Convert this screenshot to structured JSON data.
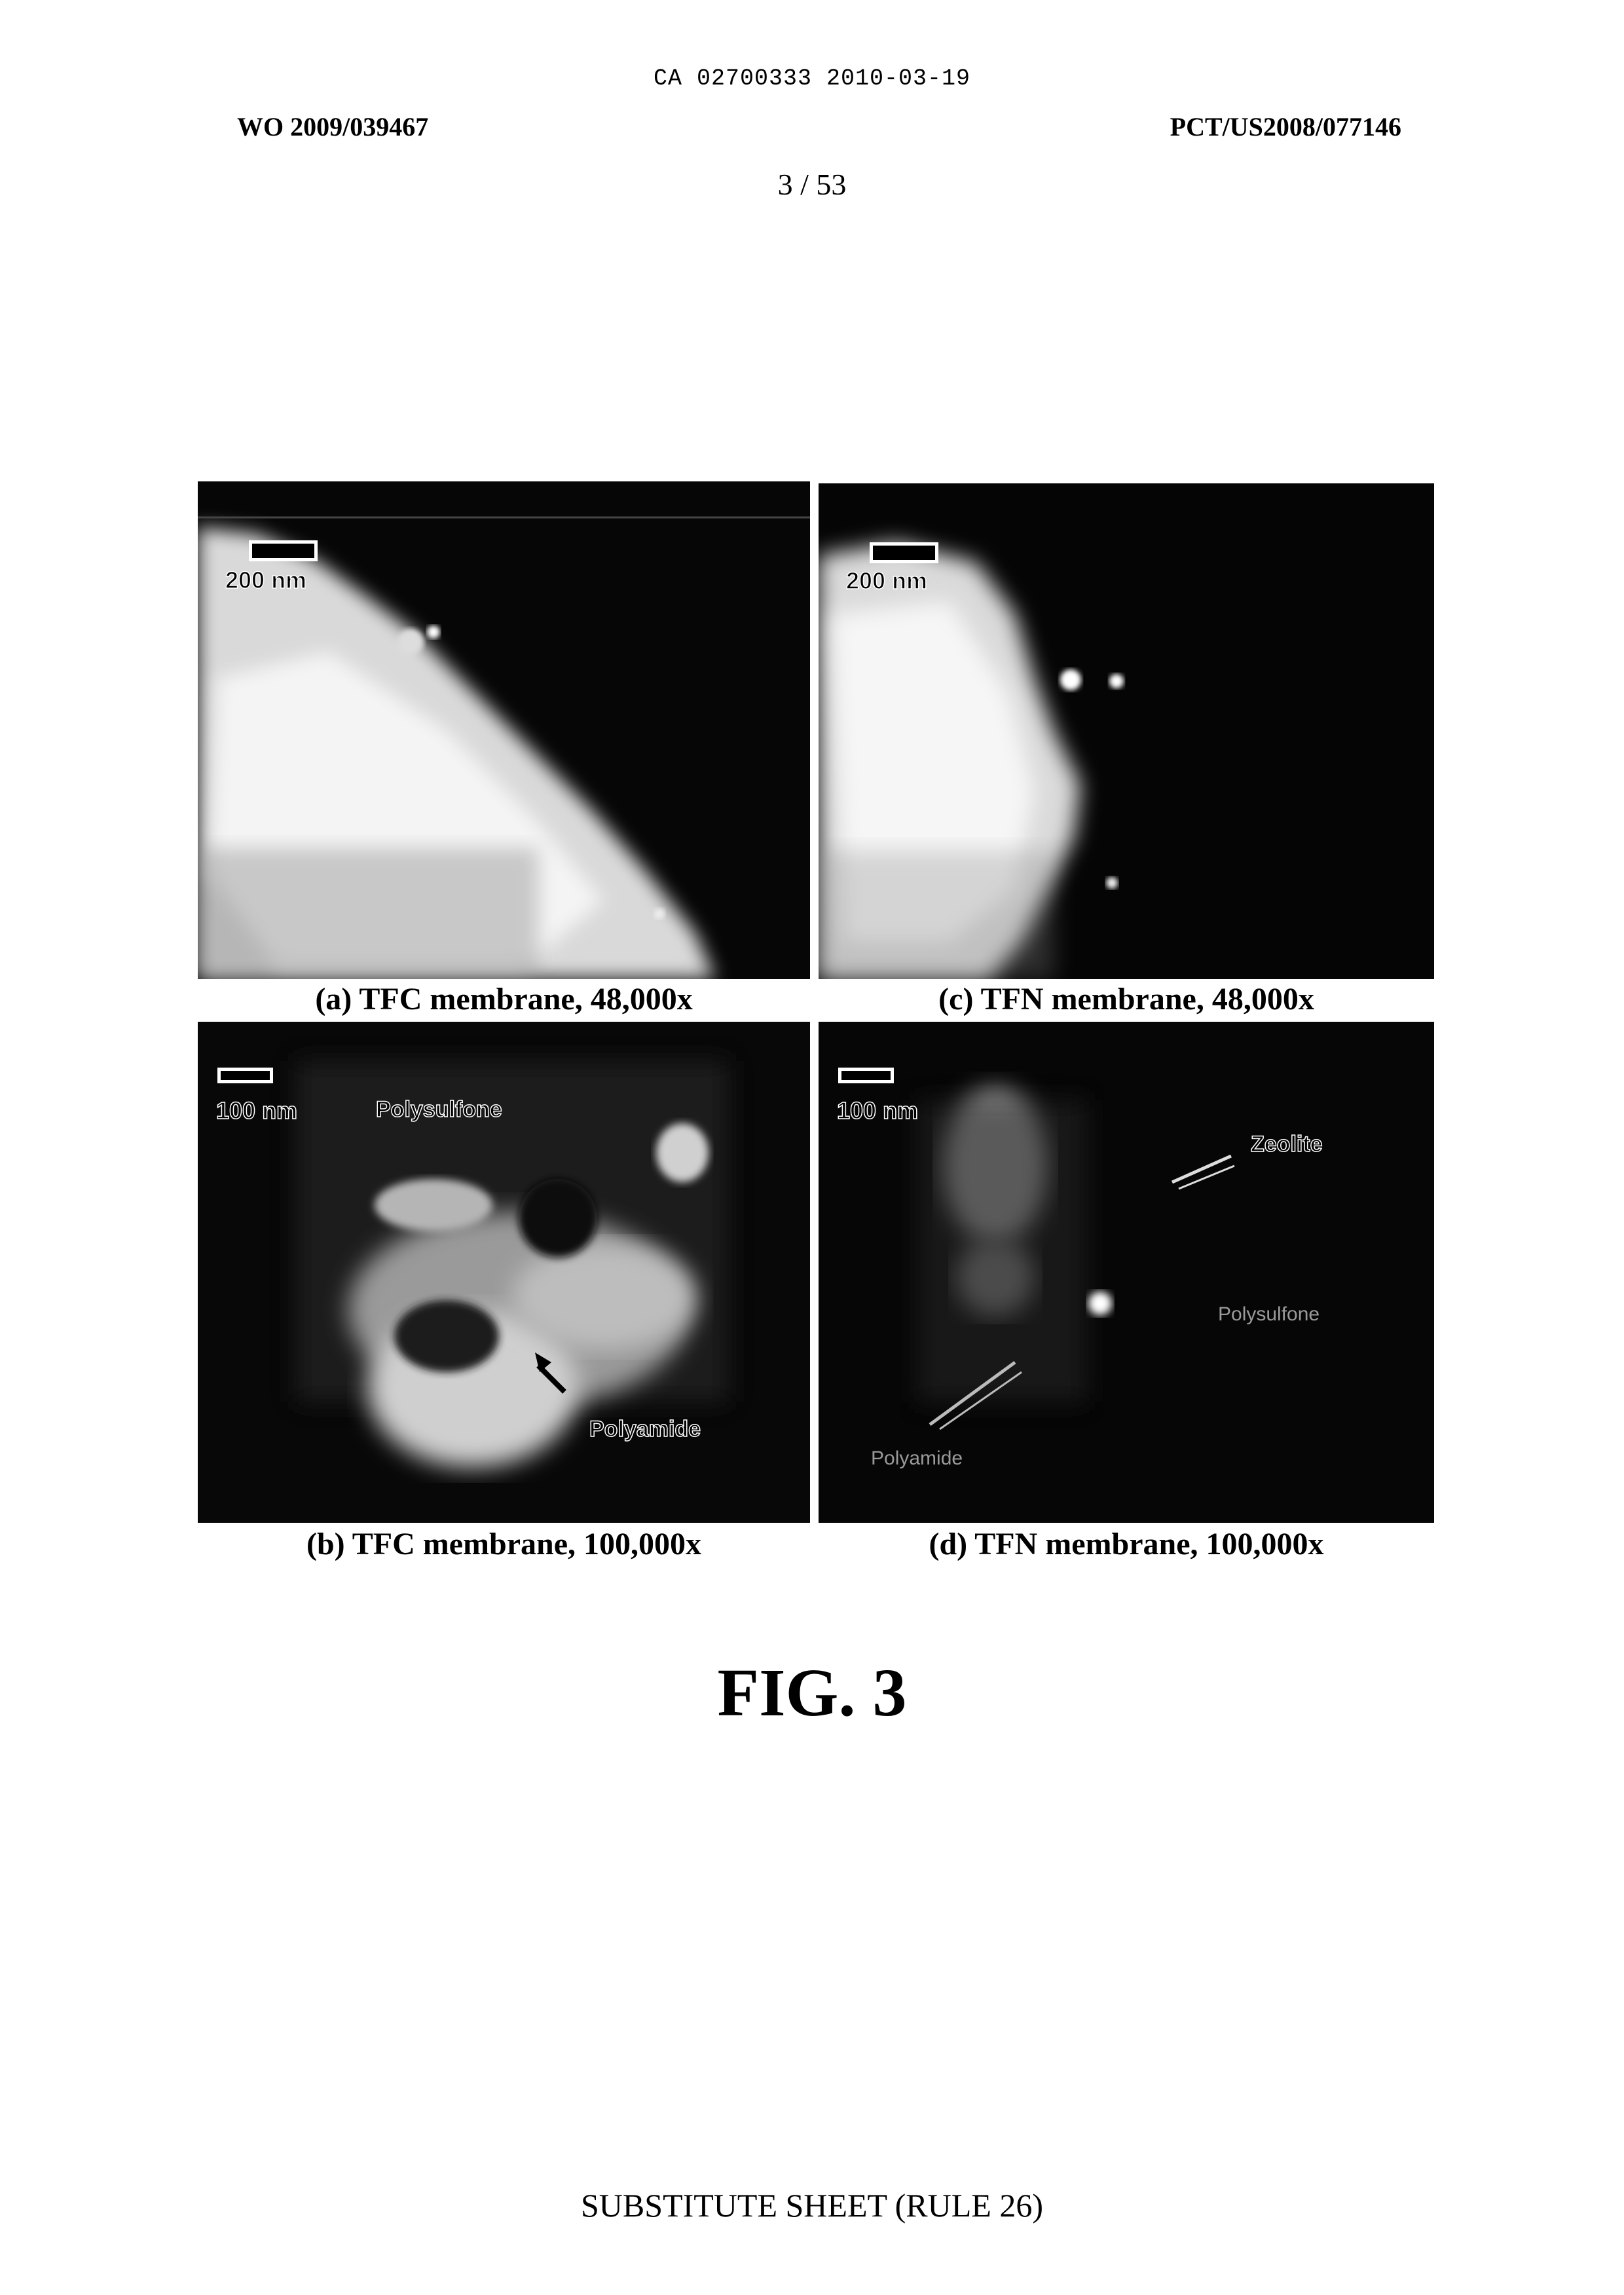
{
  "header": {
    "ca_line": "CA 02700333 2010-03-19",
    "wo_number": "WO 2009/039467",
    "pct_number": "PCT/US2008/077146",
    "sheet_number": "3 / 53"
  },
  "panels": {
    "a": {
      "caption": "(a) TFC membrane, 48,000x",
      "scale": "200 nm"
    },
    "c": {
      "caption": "(c) TFN membrane, 48,000x",
      "scale": "200 nm"
    },
    "b": {
      "caption": "(b) TFC membrane, 100,000x",
      "scale": "100 nm",
      "labels": {
        "polysulfone": "Polysulfone",
        "polyamide": "Polyamide"
      }
    },
    "d": {
      "caption": "(d) TFN membrane, 100,000x",
      "scale": "100 nm",
      "labels": {
        "zeolite": "Zeolite",
        "polysulfone_faint": "Polysulfone",
        "polyamide_faint": "Polyamide"
      }
    }
  },
  "figure_label": "FIG. 3",
  "footer": "SUBSTITUTE SHEET (RULE 26)"
}
